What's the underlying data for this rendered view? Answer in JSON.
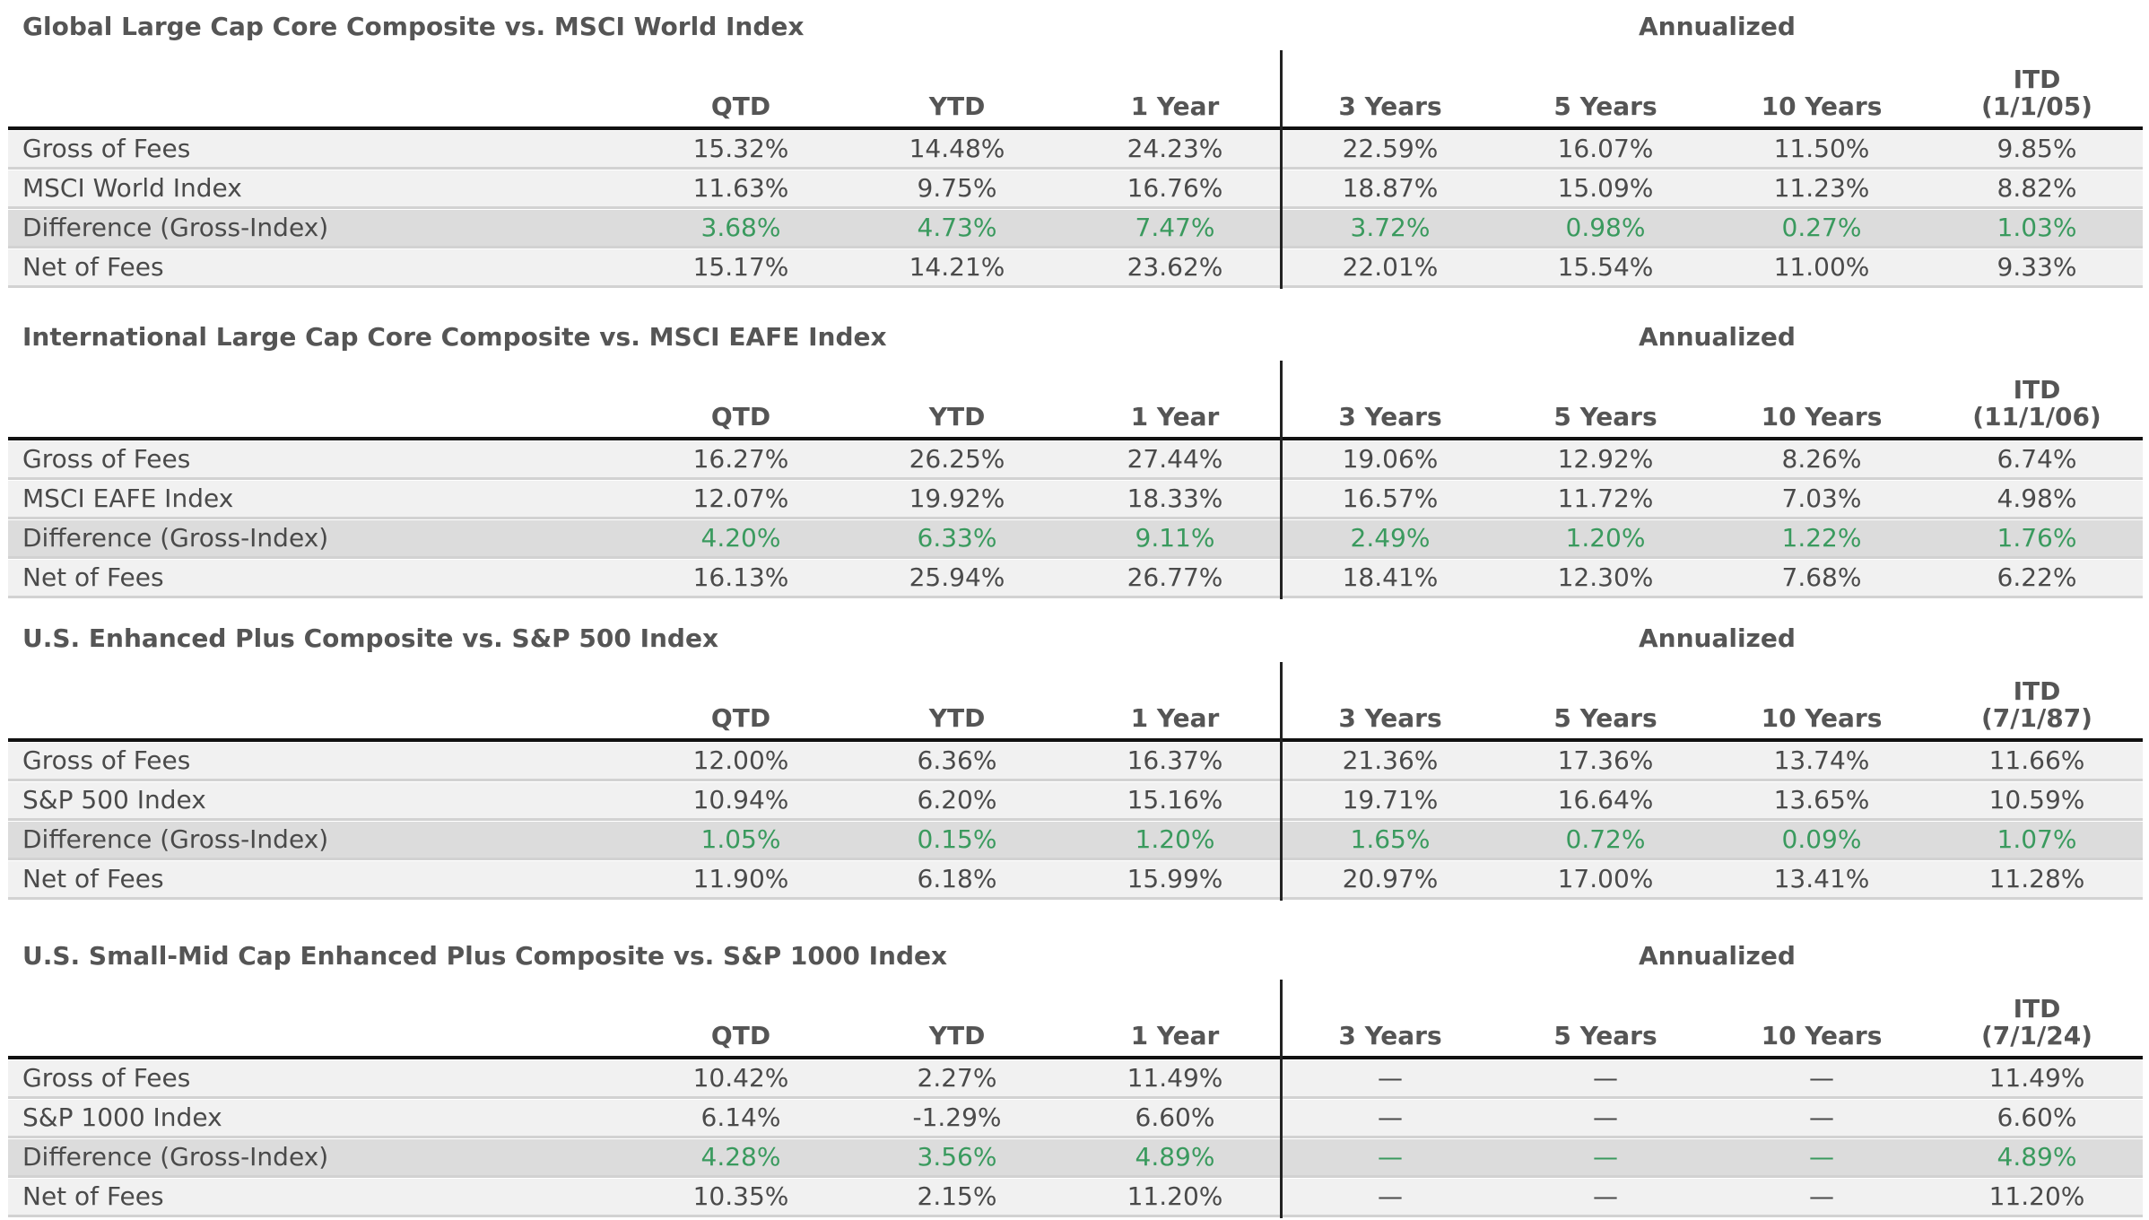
{
  "columns": [
    "QTD",
    "YTD",
    "1 Year",
    "3 Years",
    "5 Years",
    "10 Years"
  ],
  "annualized_label": "Annualized",
  "tables": [
    {
      "title": "Global Large Cap Core Composite vs. MSCI World Index",
      "itd_label": "ITD",
      "itd_date": "(1/1/05)",
      "rows": [
        {
          "label": "Gross of Fees",
          "values": [
            "15.32%",
            "14.48%",
            "24.23%",
            "22.59%",
            "16.07%",
            "11.50%",
            "9.85%"
          ]
        },
        {
          "label": "MSCI World Index",
          "values": [
            "11.63%",
            "9.75%",
            "16.76%",
            "18.87%",
            "15.09%",
            "11.23%",
            "8.82%"
          ]
        },
        {
          "label": "Difference (Gross-Index)",
          "values": [
            "3.68%",
            "4.73%",
            "7.47%",
            "3.72%",
            "0.98%",
            "0.27%",
            "1.03%"
          ]
        },
        {
          "label": "Net of Fees",
          "values": [
            "15.17%",
            "14.21%",
            "23.62%",
            "22.01%",
            "15.54%",
            "11.00%",
            "9.33%"
          ]
        }
      ]
    },
    {
      "title": "International Large Cap Core Composite vs. MSCI EAFE Index",
      "itd_label": "ITD",
      "itd_date": "(11/1/06)",
      "rows": [
        {
          "label": "Gross of Fees",
          "values": [
            "16.27%",
            "26.25%",
            "27.44%",
            "19.06%",
            "12.92%",
            "8.26%",
            "6.74%"
          ]
        },
        {
          "label": "MSCI EAFE Index",
          "values": [
            "12.07%",
            "19.92%",
            "18.33%",
            "16.57%",
            "11.72%",
            "7.03%",
            "4.98%"
          ]
        },
        {
          "label": "Difference (Gross-Index)",
          "values": [
            "4.20%",
            "6.33%",
            "9.11%",
            "2.49%",
            "1.20%",
            "1.22%",
            "1.76%"
          ]
        },
        {
          "label": "Net of Fees",
          "values": [
            "16.13%",
            "25.94%",
            "26.77%",
            "18.41%",
            "12.30%",
            "7.68%",
            "6.22%"
          ]
        }
      ]
    },
    {
      "title": "U.S. Enhanced Plus Composite vs. S&P 500 Index",
      "itd_label": "ITD",
      "itd_date": "(7/1/87)",
      "rows": [
        {
          "label": "Gross of Fees",
          "values": [
            "12.00%",
            "6.36%",
            "16.37%",
            "21.36%",
            "17.36%",
            "13.74%",
            "11.66%"
          ]
        },
        {
          "label": "S&P 500 Index",
          "values": [
            "10.94%",
            "6.20%",
            "15.16%",
            "19.71%",
            "16.64%",
            "13.65%",
            "10.59%"
          ]
        },
        {
          "label": "Difference (Gross-Index)",
          "values": [
            "1.05%",
            "0.15%",
            "1.20%",
            "1.65%",
            "0.72%",
            "0.09%",
            "1.07%"
          ]
        },
        {
          "label": "Net of Fees",
          "values": [
            "11.90%",
            "6.18%",
            "15.99%",
            "20.97%",
            "17.00%",
            "13.41%",
            "11.28%"
          ]
        }
      ]
    },
    {
      "title": "U.S. Small-Mid Cap Enhanced Plus Composite vs. S&P 1000 Index",
      "itd_label": "ITD",
      "itd_date": "(7/1/24)",
      "rows": [
        {
          "label": "Gross of Fees",
          "values": [
            "10.42%",
            "2.27%",
            "11.49%",
            "—",
            "—",
            "—",
            "11.49%"
          ]
        },
        {
          "label": "S&P 1000 Index",
          "values": [
            "6.14%",
            "-1.29%",
            "6.60%",
            "—",
            "—",
            "—",
            "6.60%"
          ]
        },
        {
          "label": "Difference (Gross-Index)",
          "values": [
            "4.28%",
            "3.56%",
            "4.89%",
            "—",
            "—",
            "—",
            "4.89%"
          ]
        },
        {
          "label": "Net of Fees",
          "values": [
            "10.35%",
            "2.15%",
            "11.20%",
            "—",
            "—",
            "—",
            "11.20%"
          ]
        }
      ]
    }
  ]
}
